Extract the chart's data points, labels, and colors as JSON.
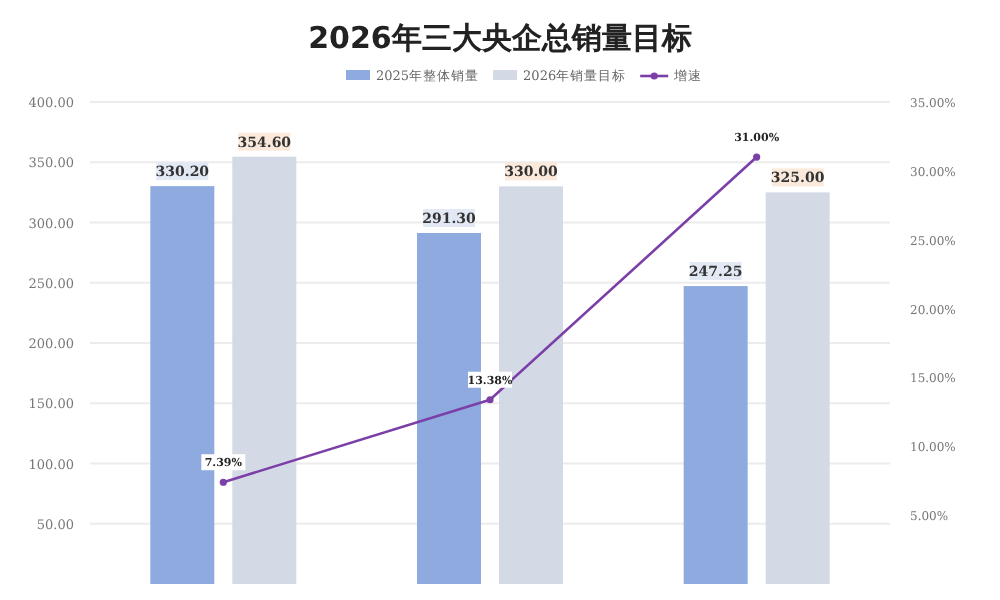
{
  "chart_data": {
    "type": "bar",
    "title": "2026年三大央企总销量目标",
    "categories": [
      null,
      null,
      null
    ],
    "series": [
      {
        "name": "2025年整体销量",
        "color": "#8eaadf",
        "values": [
          330.2,
          291.3,
          247.25
        ],
        "value_labels": [
          "330.20",
          "291.30",
          "247.25"
        ]
      },
      {
        "name": "2026年销量目标",
        "color": "#d3dae6",
        "values": [
          354.6,
          330.0,
          325.0
        ],
        "value_labels": [
          "354.60",
          "330.00",
          "325.00"
        ]
      },
      {
        "name": "增速",
        "type": "line",
        "axis": "y2",
        "color": "#7b3fa8",
        "marker": "circle",
        "values": [
          7.39,
          13.38,
          31.0
        ],
        "value_labels": [
          "7.39%",
          "13.38%",
          "31.00%"
        ]
      }
    ],
    "ylim": [
      0,
      400
    ],
    "yticks": [
      {
        "value": 50,
        "label": "50.00"
      },
      {
        "value": 100,
        "label": "100.00"
      },
      {
        "value": 150,
        "label": "150.00"
      },
      {
        "value": 200,
        "label": "200.00"
      },
      {
        "value": 250,
        "label": "250.00"
      },
      {
        "value": 300,
        "label": "300.00"
      },
      {
        "value": 350,
        "label": "350.00"
      },
      {
        "value": 400,
        "label": "400.00"
      }
    ],
    "y2lim": [
      0,
      35
    ],
    "y2ticks": [
      {
        "value": 5,
        "label": "5.00%"
      },
      {
        "value": 10,
        "label": "10.00%"
      },
      {
        "value": 15,
        "label": "15.00%"
      },
      {
        "value": 20,
        "label": "20.00%"
      },
      {
        "value": 25,
        "label": "25.00%"
      },
      {
        "value": 30,
        "label": "30.00%"
      },
      {
        "value": 35,
        "label": "35.00%"
      }
    ],
    "grid": "y",
    "legend": "top"
  }
}
